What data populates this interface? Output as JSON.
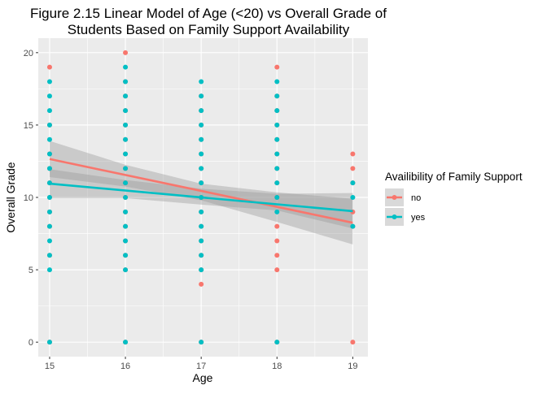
{
  "chart_data": {
    "type": "scatter",
    "title": "Figure 2.15 Linear Model of Age (<20) vs Overall Grade of\nStudents Based on Family Support Availability",
    "xlabel": "Age",
    "ylabel": "Overall Grade",
    "xlim": [
      14.85,
      19.2
    ],
    "ylim": [
      -1,
      21
    ],
    "x_ticks": [
      15,
      16,
      17,
      18,
      19
    ],
    "y_ticks": [
      0,
      5,
      10,
      15,
      20
    ],
    "grid": true,
    "legend": {
      "title": "Availibility of Family Support",
      "placement": "right",
      "entries": [
        "no",
        "yes"
      ]
    },
    "colors": {
      "no": "#F8766D",
      "yes": "#00BFC4",
      "panel": "#EBEBEB",
      "ribbon": "#999999"
    },
    "series": [
      {
        "name": "no",
        "color": "#F8766D",
        "points": [
          [
            15,
            19
          ],
          [
            15,
            15
          ],
          [
            15,
            13
          ],
          [
            15,
            12
          ],
          [
            15,
            11
          ],
          [
            15,
            10
          ],
          [
            15,
            9
          ],
          [
            15,
            8
          ],
          [
            15,
            6
          ],
          [
            15,
            0
          ],
          [
            16,
            20
          ],
          [
            16,
            18
          ],
          [
            16,
            17
          ],
          [
            16,
            16
          ],
          [
            16,
            15
          ],
          [
            16,
            14
          ],
          [
            16,
            13
          ],
          [
            16,
            12
          ],
          [
            16,
            11
          ],
          [
            16,
            10
          ],
          [
            16,
            9
          ],
          [
            16,
            8
          ],
          [
            16,
            7
          ],
          [
            16,
            6
          ],
          [
            16,
            5
          ],
          [
            16,
            0
          ],
          [
            17,
            17
          ],
          [
            17,
            16
          ],
          [
            17,
            15
          ],
          [
            17,
            14
          ],
          [
            17,
            13
          ],
          [
            17,
            12
          ],
          [
            17,
            11
          ],
          [
            17,
            10
          ],
          [
            17,
            9
          ],
          [
            17,
            8
          ],
          [
            17,
            7
          ],
          [
            17,
            6
          ],
          [
            17,
            5
          ],
          [
            17,
            4
          ],
          [
            17,
            0
          ],
          [
            18,
            19
          ],
          [
            18,
            17
          ],
          [
            18,
            16
          ],
          [
            18,
            15
          ],
          [
            18,
            14
          ],
          [
            18,
            13
          ],
          [
            18,
            12
          ],
          [
            18,
            11
          ],
          [
            18,
            10
          ],
          [
            18,
            8
          ],
          [
            18,
            7
          ],
          [
            18,
            6
          ],
          [
            18,
            5
          ],
          [
            18,
            0
          ],
          [
            19,
            13
          ],
          [
            19,
            12
          ],
          [
            19,
            11
          ],
          [
            19,
            9
          ],
          [
            19,
            8
          ],
          [
            19,
            0
          ]
        ],
        "fit": {
          "x": [
            15,
            19
          ],
          "y": [
            12.65,
            8.25
          ]
        },
        "ci_upper": [
          [
            15,
            13.9
          ],
          [
            16,
            12.25
          ],
          [
            17,
            10.95
          ],
          [
            18,
            10.35
          ],
          [
            19,
            9.9
          ]
        ],
        "ci_lower": [
          [
            15,
            11.4
          ],
          [
            16,
            10.75
          ],
          [
            17,
            9.8
          ],
          [
            18,
            8.3
          ],
          [
            19,
            6.75
          ]
        ]
      },
      {
        "name": "yes",
        "color": "#00BFC4",
        "points": [
          [
            15,
            18
          ],
          [
            15,
            17
          ],
          [
            15,
            16
          ],
          [
            15,
            15
          ],
          [
            15,
            14
          ],
          [
            15,
            13
          ],
          [
            15,
            12
          ],
          [
            15,
            11
          ],
          [
            15,
            10
          ],
          [
            15,
            9
          ],
          [
            15,
            8
          ],
          [
            15,
            7
          ],
          [
            15,
            6
          ],
          [
            15,
            5
          ],
          [
            15,
            0
          ],
          [
            16,
            19
          ],
          [
            16,
            18
          ],
          [
            16,
            17
          ],
          [
            16,
            16
          ],
          [
            16,
            15
          ],
          [
            16,
            14
          ],
          [
            16,
            13
          ],
          [
            16,
            12
          ],
          [
            16,
            11
          ],
          [
            16,
            10
          ],
          [
            16,
            9
          ],
          [
            16,
            8
          ],
          [
            16,
            7
          ],
          [
            16,
            6
          ],
          [
            16,
            5
          ],
          [
            16,
            0
          ],
          [
            17,
            18
          ],
          [
            17,
            17
          ],
          [
            17,
            16
          ],
          [
            17,
            15
          ],
          [
            17,
            14
          ],
          [
            17,
            13
          ],
          [
            17,
            12
          ],
          [
            17,
            11
          ],
          [
            17,
            10
          ],
          [
            17,
            9
          ],
          [
            17,
            8
          ],
          [
            17,
            7
          ],
          [
            17,
            6
          ],
          [
            17,
            5
          ],
          [
            17,
            0
          ],
          [
            18,
            18
          ],
          [
            18,
            17
          ],
          [
            18,
            16
          ],
          [
            18,
            15
          ],
          [
            18,
            14
          ],
          [
            18,
            13
          ],
          [
            18,
            12
          ],
          [
            18,
            11
          ],
          [
            18,
            10
          ],
          [
            18,
            9
          ],
          [
            18,
            0
          ],
          [
            19,
            11
          ],
          [
            19,
            10
          ],
          [
            19,
            8
          ]
        ],
        "fit": {
          "x": [
            15,
            19
          ],
          "y": [
            10.95,
            9.05
          ]
        },
        "ci_upper": [
          [
            15,
            11.95
          ],
          [
            16,
            11.2
          ],
          [
            17,
            10.6
          ],
          [
            18,
            10.25
          ],
          [
            19,
            10.3
          ]
        ],
        "ci_lower": [
          [
            15,
            9.95
          ],
          [
            16,
            9.95
          ],
          [
            17,
            9.5
          ],
          [
            18,
            9.1
          ],
          [
            19,
            7.85
          ]
        ]
      }
    ]
  }
}
